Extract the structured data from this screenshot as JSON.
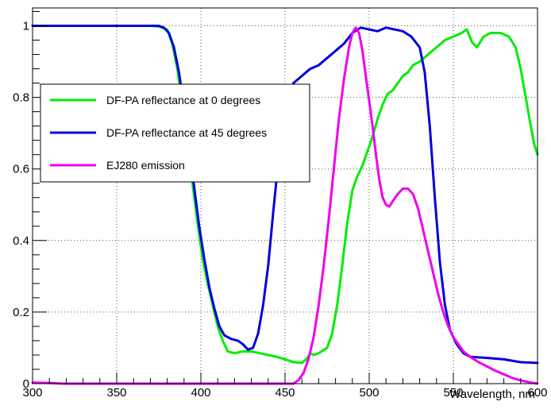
{
  "chart_data": {
    "type": "line",
    "title": "",
    "xlabel": "Wavelength, nm",
    "ylabel": "",
    "xlim": [
      300,
      600
    ],
    "ylim": [
      0,
      1.05
    ],
    "grid": true,
    "legend_position": "top-left",
    "x_ticks": [
      300,
      350,
      400,
      450,
      500,
      550,
      600
    ],
    "x_tick_labels": [
      "300",
      "350",
      "400",
      "450",
      "500",
      "550",
      "600"
    ],
    "y_ticks": [
      0,
      0.2,
      0.4,
      0.6,
      0.8,
      1
    ],
    "y_tick_labels": [
      "0",
      "0.2",
      "0.4",
      "0.6",
      "0.8",
      "1"
    ],
    "series": [
      {
        "name": "DF-PA reflectance at 0 degrees",
        "color": "#00ee00",
        "points": [
          [
            300,
            1.0
          ],
          [
            370,
            1.0
          ],
          [
            375,
            0.998
          ],
          [
            380,
            0.99
          ],
          [
            383,
            0.95
          ],
          [
            386,
            0.88
          ],
          [
            389,
            0.78
          ],
          [
            392,
            0.67
          ],
          [
            395,
            0.56
          ],
          [
            398,
            0.45
          ],
          [
            401,
            0.35
          ],
          [
            404,
            0.28
          ],
          [
            407,
            0.22
          ],
          [
            410,
            0.16
          ],
          [
            413,
            0.12
          ],
          [
            416,
            0.09
          ],
          [
            420,
            0.085
          ],
          [
            425,
            0.09
          ],
          [
            430,
            0.09
          ],
          [
            435,
            0.085
          ],
          [
            440,
            0.08
          ],
          [
            445,
            0.075
          ],
          [
            450,
            0.068
          ],
          [
            455,
            0.06
          ],
          [
            460,
            0.058
          ],
          [
            463,
            0.07
          ],
          [
            465,
            0.085
          ],
          [
            467,
            0.08
          ],
          [
            470,
            0.085
          ],
          [
            475,
            0.1
          ],
          [
            478,
            0.14
          ],
          [
            481,
            0.22
          ],
          [
            484,
            0.33
          ],
          [
            487,
            0.45
          ],
          [
            490,
            0.54
          ],
          [
            493,
            0.58
          ],
          [
            496,
            0.61
          ],
          [
            499,
            0.65
          ],
          [
            502,
            0.69
          ],
          [
            505,
            0.74
          ],
          [
            508,
            0.78
          ],
          [
            511,
            0.81
          ],
          [
            514,
            0.82
          ],
          [
            517,
            0.84
          ],
          [
            520,
            0.86
          ],
          [
            523,
            0.87
          ],
          [
            526,
            0.89
          ],
          [
            530,
            0.9
          ],
          [
            535,
            0.92
          ],
          [
            540,
            0.94
          ],
          [
            545,
            0.96
          ],
          [
            550,
            0.97
          ],
          [
            555,
            0.98
          ],
          [
            558,
            0.99
          ],
          [
            561,
            0.955
          ],
          [
            564,
            0.94
          ],
          [
            568,
            0.97
          ],
          [
            572,
            0.98
          ],
          [
            578,
            0.98
          ],
          [
            583,
            0.97
          ],
          [
            587,
            0.94
          ],
          [
            590,
            0.88
          ],
          [
            593,
            0.8
          ],
          [
            596,
            0.72
          ],
          [
            598,
            0.67
          ],
          [
            600,
            0.64
          ]
        ]
      },
      {
        "name": "DF-PA reflectance at 45 degrees",
        "color": "#0000dd",
        "points": [
          [
            300,
            1.0
          ],
          [
            375,
            1.0
          ],
          [
            378,
            0.995
          ],
          [
            381,
            0.98
          ],
          [
            384,
            0.94
          ],
          [
            387,
            0.87
          ],
          [
            390,
            0.77
          ],
          [
            393,
            0.66
          ],
          [
            396,
            0.55
          ],
          [
            399,
            0.44
          ],
          [
            402,
            0.35
          ],
          [
            405,
            0.27
          ],
          [
            408,
            0.21
          ],
          [
            411,
            0.16
          ],
          [
            414,
            0.135
          ],
          [
            418,
            0.125
          ],
          [
            422,
            0.12
          ],
          [
            425,
            0.11
          ],
          [
            428,
            0.095
          ],
          [
            431,
            0.1
          ],
          [
            434,
            0.14
          ],
          [
            437,
            0.22
          ],
          [
            440,
            0.33
          ],
          [
            443,
            0.48
          ],
          [
            446,
            0.62
          ],
          [
            449,
            0.74
          ],
          [
            452,
            0.81
          ],
          [
            455,
            0.84
          ],
          [
            460,
            0.86
          ],
          [
            465,
            0.88
          ],
          [
            470,
            0.89
          ],
          [
            475,
            0.91
          ],
          [
            480,
            0.93
          ],
          [
            485,
            0.95
          ],
          [
            490,
            0.98
          ],
          [
            495,
            0.995
          ],
          [
            500,
            0.99
          ],
          [
            505,
            0.985
          ],
          [
            510,
            0.995
          ],
          [
            515,
            0.99
          ],
          [
            520,
            0.985
          ],
          [
            525,
            0.97
          ],
          [
            530,
            0.94
          ],
          [
            533,
            0.87
          ],
          [
            536,
            0.72
          ],
          [
            539,
            0.52
          ],
          [
            542,
            0.34
          ],
          [
            545,
            0.22
          ],
          [
            548,
            0.15
          ],
          [
            552,
            0.11
          ],
          [
            556,
            0.085
          ],
          [
            560,
            0.075
          ],
          [
            570,
            0.072
          ],
          [
            580,
            0.068
          ],
          [
            590,
            0.06
          ],
          [
            600,
            0.058
          ]
        ]
      },
      {
        "name": "EJ280 emission",
        "color": "#ee00ee",
        "points": [
          [
            300,
            0.003
          ],
          [
            310,
            0.002
          ],
          [
            318,
            0.0
          ],
          [
            455,
            0.0
          ],
          [
            458,
            0.01
          ],
          [
            461,
            0.03
          ],
          [
            464,
            0.07
          ],
          [
            467,
            0.13
          ],
          [
            470,
            0.22
          ],
          [
            473,
            0.33
          ],
          [
            476,
            0.46
          ],
          [
            479,
            0.6
          ],
          [
            482,
            0.74
          ],
          [
            485,
            0.85
          ],
          [
            488,
            0.94
          ],
          [
            490,
            0.98
          ],
          [
            492,
            0.995
          ],
          [
            494,
            0.98
          ],
          [
            496,
            0.93
          ],
          [
            498,
            0.86
          ],
          [
            500,
            0.79
          ],
          [
            502,
            0.72
          ],
          [
            504,
            0.64
          ],
          [
            506,
            0.57
          ],
          [
            508,
            0.52
          ],
          [
            510,
            0.5
          ],
          [
            512,
            0.495
          ],
          [
            514,
            0.51
          ],
          [
            517,
            0.53
          ],
          [
            520,
            0.545
          ],
          [
            523,
            0.545
          ],
          [
            526,
            0.53
          ],
          [
            529,
            0.49
          ],
          [
            532,
            0.43
          ],
          [
            535,
            0.37
          ],
          [
            538,
            0.31
          ],
          [
            541,
            0.25
          ],
          [
            544,
            0.2
          ],
          [
            547,
            0.16
          ],
          [
            550,
            0.13
          ],
          [
            553,
            0.11
          ],
          [
            556,
            0.09
          ],
          [
            560,
            0.075
          ],
          [
            565,
            0.06
          ],
          [
            570,
            0.048
          ],
          [
            575,
            0.036
          ],
          [
            580,
            0.026
          ],
          [
            585,
            0.016
          ],
          [
            590,
            0.009
          ],
          [
            595,
            0.004
          ],
          [
            600,
            0.0
          ]
        ]
      }
    ]
  }
}
